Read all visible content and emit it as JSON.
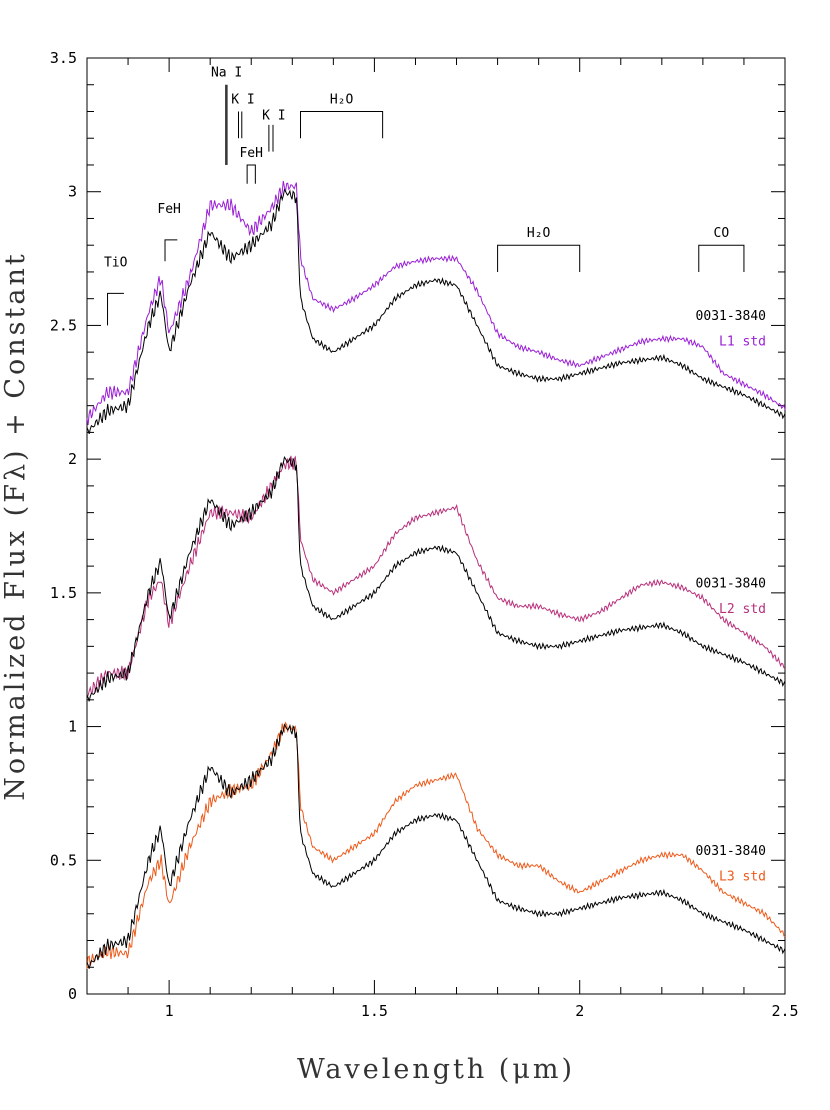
{
  "chart_data": {
    "type": "line",
    "xlabel": "Wavelength (μm)",
    "ylabel": "Normalized Flux (Fλ) + Constant",
    "xlim": [
      0.8,
      2.5
    ],
    "ylim": [
      0,
      3.5
    ],
    "x_ticks": [
      {
        "value": 1.0,
        "label": "1"
      },
      {
        "value": 1.5,
        "label": "1.5"
      },
      {
        "value": 2.0,
        "label": "2"
      },
      {
        "value": 2.5,
        "label": "2.5"
      }
    ],
    "y_ticks": [
      {
        "value": 0,
        "label": "0"
      },
      {
        "value": 0.5,
        "label": "0.5"
      },
      {
        "value": 1,
        "label": "1"
      },
      {
        "value": 1.5,
        "label": "1.5"
      },
      {
        "value": 2,
        "label": "2"
      },
      {
        "value": 2.5,
        "label": "2.5"
      },
      {
        "value": 3,
        "label": "3"
      },
      {
        "value": 3.5,
        "label": "3.5"
      }
    ],
    "x_minor_step": 0.1,
    "y_minor_step": 0.1,
    "grid": false,
    "colors": {
      "object": "#000000",
      "L1": "#9a1fd6",
      "L2": "#b82f7a",
      "L3": "#ee5a1a"
    },
    "panels": [
      {
        "offset": 2,
        "object_label": "0031-3840",
        "std_label": "L1 std",
        "std_color": "#9a1fd6",
        "object_points": [
          [
            0.8,
            0.1
          ],
          [
            0.85,
            0.18
          ],
          [
            0.9,
            0.2
          ],
          [
            0.95,
            0.5
          ],
          [
            0.98,
            0.62
          ],
          [
            1.0,
            0.4
          ],
          [
            1.05,
            0.65
          ],
          [
            1.1,
            0.85
          ],
          [
            1.15,
            0.75
          ],
          [
            1.2,
            0.8
          ],
          [
            1.25,
            0.88
          ],
          [
            1.28,
            1.0
          ],
          [
            1.31,
            0.98
          ],
          [
            1.32,
            0.6
          ],
          [
            1.35,
            0.45
          ],
          [
            1.4,
            0.4
          ],
          [
            1.45,
            0.45
          ],
          [
            1.5,
            0.5
          ],
          [
            1.55,
            0.6
          ],
          [
            1.6,
            0.65
          ],
          [
            1.65,
            0.67
          ],
          [
            1.7,
            0.65
          ],
          [
            1.75,
            0.5
          ],
          [
            1.8,
            0.35
          ],
          [
            1.85,
            0.32
          ],
          [
            1.9,
            0.3
          ],
          [
            1.95,
            0.3
          ],
          [
            2.0,
            0.32
          ],
          [
            2.05,
            0.34
          ],
          [
            2.1,
            0.36
          ],
          [
            2.15,
            0.37
          ],
          [
            2.2,
            0.38
          ],
          [
            2.25,
            0.35
          ],
          [
            2.3,
            0.3
          ],
          [
            2.35,
            0.27
          ],
          [
            2.4,
            0.24
          ],
          [
            2.45,
            0.2
          ],
          [
            2.5,
            0.16
          ]
        ],
        "std_points": [
          [
            0.8,
            0.15
          ],
          [
            0.85,
            0.25
          ],
          [
            0.9,
            0.25
          ],
          [
            0.95,
            0.55
          ],
          [
            0.98,
            0.68
          ],
          [
            1.0,
            0.47
          ],
          [
            1.05,
            0.68
          ],
          [
            1.1,
            0.95
          ],
          [
            1.15,
            0.95
          ],
          [
            1.2,
            0.85
          ],
          [
            1.25,
            0.94
          ],
          [
            1.28,
            1.02
          ],
          [
            1.31,
            1.02
          ],
          [
            1.32,
            0.75
          ],
          [
            1.35,
            0.6
          ],
          [
            1.4,
            0.56
          ],
          [
            1.45,
            0.6
          ],
          [
            1.5,
            0.65
          ],
          [
            1.55,
            0.72
          ],
          [
            1.6,
            0.74
          ],
          [
            1.65,
            0.75
          ],
          [
            1.7,
            0.75
          ],
          [
            1.75,
            0.63
          ],
          [
            1.8,
            0.47
          ],
          [
            1.85,
            0.42
          ],
          [
            1.9,
            0.4
          ],
          [
            1.95,
            0.37
          ],
          [
            2.0,
            0.35
          ],
          [
            2.05,
            0.38
          ],
          [
            2.1,
            0.41
          ],
          [
            2.15,
            0.44
          ],
          [
            2.2,
            0.45
          ],
          [
            2.25,
            0.45
          ],
          [
            2.3,
            0.42
          ],
          [
            2.35,
            0.32
          ],
          [
            2.4,
            0.28
          ],
          [
            2.45,
            0.24
          ],
          [
            2.5,
            0.19
          ]
        ]
      },
      {
        "offset": 1,
        "object_label": "0031-3840",
        "std_label": "L2 std",
        "std_color": "#b82f7a",
        "object_points": [
          [
            0.8,
            0.1
          ],
          [
            0.85,
            0.18
          ],
          [
            0.9,
            0.2
          ],
          [
            0.95,
            0.5
          ],
          [
            0.98,
            0.62
          ],
          [
            1.0,
            0.4
          ],
          [
            1.05,
            0.65
          ],
          [
            1.1,
            0.85
          ],
          [
            1.15,
            0.75
          ],
          [
            1.2,
            0.8
          ],
          [
            1.25,
            0.88
          ],
          [
            1.28,
            1.0
          ],
          [
            1.31,
            0.98
          ],
          [
            1.32,
            0.6
          ],
          [
            1.35,
            0.45
          ],
          [
            1.4,
            0.4
          ],
          [
            1.45,
            0.45
          ],
          [
            1.5,
            0.5
          ],
          [
            1.55,
            0.6
          ],
          [
            1.6,
            0.65
          ],
          [
            1.65,
            0.67
          ],
          [
            1.7,
            0.65
          ],
          [
            1.75,
            0.5
          ],
          [
            1.8,
            0.35
          ],
          [
            1.85,
            0.32
          ],
          [
            1.9,
            0.3
          ],
          [
            1.95,
            0.3
          ],
          [
            2.0,
            0.32
          ],
          [
            2.05,
            0.34
          ],
          [
            2.1,
            0.36
          ],
          [
            2.15,
            0.37
          ],
          [
            2.2,
            0.38
          ],
          [
            2.25,
            0.35
          ],
          [
            2.3,
            0.3
          ],
          [
            2.35,
            0.27
          ],
          [
            2.4,
            0.24
          ],
          [
            2.45,
            0.2
          ],
          [
            2.5,
            0.16
          ]
        ],
        "std_points": [
          [
            0.8,
            0.12
          ],
          [
            0.85,
            0.2
          ],
          [
            0.9,
            0.2
          ],
          [
            0.95,
            0.48
          ],
          [
            0.98,
            0.55
          ],
          [
            1.0,
            0.38
          ],
          [
            1.05,
            0.6
          ],
          [
            1.1,
            0.8
          ],
          [
            1.15,
            0.8
          ],
          [
            1.2,
            0.78
          ],
          [
            1.25,
            0.9
          ],
          [
            1.28,
            0.98
          ],
          [
            1.31,
            0.99
          ],
          [
            1.32,
            0.7
          ],
          [
            1.35,
            0.55
          ],
          [
            1.4,
            0.5
          ],
          [
            1.45,
            0.55
          ],
          [
            1.5,
            0.6
          ],
          [
            1.55,
            0.72
          ],
          [
            1.6,
            0.78
          ],
          [
            1.65,
            0.8
          ],
          [
            1.7,
            0.82
          ],
          [
            1.75,
            0.62
          ],
          [
            1.8,
            0.48
          ],
          [
            1.85,
            0.45
          ],
          [
            1.9,
            0.45
          ],
          [
            1.95,
            0.42
          ],
          [
            2.0,
            0.4
          ],
          [
            2.05,
            0.43
          ],
          [
            2.1,
            0.48
          ],
          [
            2.15,
            0.53
          ],
          [
            2.2,
            0.54
          ],
          [
            2.25,
            0.52
          ],
          [
            2.3,
            0.48
          ],
          [
            2.35,
            0.4
          ],
          [
            2.4,
            0.35
          ],
          [
            2.45,
            0.3
          ],
          [
            2.5,
            0.22
          ]
        ]
      },
      {
        "offset": 0,
        "object_label": "0031-3840",
        "std_label": "L3 std",
        "std_color": "#ee5a1a",
        "object_points": [
          [
            0.8,
            0.1
          ],
          [
            0.85,
            0.18
          ],
          [
            0.9,
            0.2
          ],
          [
            0.95,
            0.5
          ],
          [
            0.98,
            0.62
          ],
          [
            1.0,
            0.4
          ],
          [
            1.05,
            0.65
          ],
          [
            1.1,
            0.85
          ],
          [
            1.15,
            0.75
          ],
          [
            1.2,
            0.8
          ],
          [
            1.25,
            0.88
          ],
          [
            1.28,
            1.0
          ],
          [
            1.31,
            0.98
          ],
          [
            1.32,
            0.6
          ],
          [
            1.35,
            0.45
          ],
          [
            1.4,
            0.4
          ],
          [
            1.45,
            0.45
          ],
          [
            1.5,
            0.5
          ],
          [
            1.55,
            0.6
          ],
          [
            1.6,
            0.65
          ],
          [
            1.65,
            0.67
          ],
          [
            1.7,
            0.65
          ],
          [
            1.75,
            0.5
          ],
          [
            1.8,
            0.35
          ],
          [
            1.85,
            0.32
          ],
          [
            1.9,
            0.3
          ],
          [
            1.95,
            0.3
          ],
          [
            2.0,
            0.32
          ],
          [
            2.05,
            0.34
          ],
          [
            2.1,
            0.36
          ],
          [
            2.15,
            0.37
          ],
          [
            2.2,
            0.38
          ],
          [
            2.25,
            0.35
          ],
          [
            2.3,
            0.3
          ],
          [
            2.35,
            0.27
          ],
          [
            2.4,
            0.24
          ],
          [
            2.45,
            0.2
          ],
          [
            2.5,
            0.16
          ]
        ],
        "std_points": [
          [
            0.8,
            0.12
          ],
          [
            0.85,
            0.16
          ],
          [
            0.9,
            0.15
          ],
          [
            0.95,
            0.42
          ],
          [
            0.98,
            0.5
          ],
          [
            1.0,
            0.33
          ],
          [
            1.05,
            0.55
          ],
          [
            1.1,
            0.72
          ],
          [
            1.15,
            0.76
          ],
          [
            1.2,
            0.78
          ],
          [
            1.25,
            0.9
          ],
          [
            1.28,
            1.0
          ],
          [
            1.31,
            0.99
          ],
          [
            1.32,
            0.7
          ],
          [
            1.35,
            0.55
          ],
          [
            1.4,
            0.5
          ],
          [
            1.45,
            0.55
          ],
          [
            1.5,
            0.6
          ],
          [
            1.55,
            0.72
          ],
          [
            1.6,
            0.78
          ],
          [
            1.65,
            0.8
          ],
          [
            1.7,
            0.82
          ],
          [
            1.75,
            0.62
          ],
          [
            1.8,
            0.52
          ],
          [
            1.85,
            0.48
          ],
          [
            1.9,
            0.48
          ],
          [
            1.95,
            0.42
          ],
          [
            2.0,
            0.38
          ],
          [
            2.05,
            0.42
          ],
          [
            2.1,
            0.46
          ],
          [
            2.15,
            0.5
          ],
          [
            2.2,
            0.52
          ],
          [
            2.25,
            0.52
          ],
          [
            2.3,
            0.46
          ],
          [
            2.35,
            0.38
          ],
          [
            2.4,
            0.34
          ],
          [
            2.45,
            0.3
          ],
          [
            2.5,
            0.22
          ]
        ]
      }
    ],
    "features": [
      {
        "label": "TiO",
        "h2o": false,
        "bracket": [
          0.85,
          0.89
        ],
        "label_x": 0.87,
        "label_y": 2.72,
        "bar_top": 2.62,
        "bar_bottom": 2.5
      },
      {
        "label": "FeH",
        "h2o": false,
        "bracket": [
          0.99,
          1.02
        ],
        "label_x": 1.0,
        "label_y": 2.92,
        "bar_top": 2.82,
        "bar_bottom": 2.74
      },
      {
        "label": "Na I",
        "h2o": false,
        "lines": [
          1.138,
          1.141
        ],
        "label_x": 1.14,
        "label_y": 3.43,
        "bar_top": 3.4,
        "bar_bottom": 3.1
      },
      {
        "label": "K I",
        "h2o": false,
        "lines": [
          1.169,
          1.177
        ],
        "label_x": 1.18,
        "label_y": 3.33,
        "bar_top": 3.3,
        "bar_bottom": 3.2
      },
      {
        "label": "FeH",
        "h2o": false,
        "bracket": [
          1.19,
          1.21
        ],
        "label_x": 1.2,
        "label_y": 3.13,
        "bar_top": 3.1,
        "bar_bottom": 3.03
      },
      {
        "label": "K I",
        "h2o": false,
        "lines": [
          1.243,
          1.253
        ],
        "label_x": 1.255,
        "label_y": 3.27,
        "bar_top": 3.25,
        "bar_bottom": 3.15
      },
      {
        "label": "H₂O",
        "h2o": true,
        "bracket": [
          1.32,
          1.52
        ],
        "label_x": 1.42,
        "label_y": 3.33,
        "bar_top": 3.3,
        "bar_bottom": 3.2
      },
      {
        "label": "H₂O",
        "h2o": true,
        "bracket": [
          1.8,
          2.0
        ],
        "label_x": 1.9,
        "label_y": 2.83,
        "bar_top": 2.8,
        "bar_bottom": 2.7
      },
      {
        "label": "CO",
        "h2o": false,
        "bracket": [
          2.29,
          2.4
        ],
        "label_x": 2.345,
        "label_y": 2.83,
        "bar_top": 2.8,
        "bar_bottom": 2.7
      }
    ]
  }
}
